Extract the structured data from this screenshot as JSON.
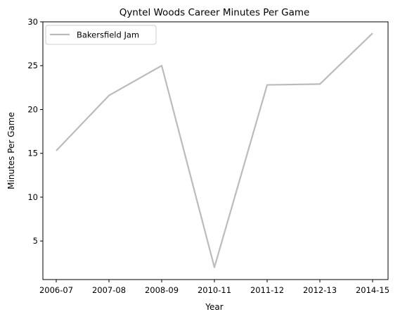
{
  "chart_data": {
    "type": "line",
    "title": "Qyntel Woods Career Minutes Per Game",
    "xlabel": "Year",
    "ylabel": "Minutes Per Game",
    "categories": [
      "2006-07",
      "2007-08",
      "2008-09",
      "2010-11",
      "2011-12",
      "2012-13",
      "2014-15"
    ],
    "series": [
      {
        "name": "Bakersfield Jam",
        "values": [
          15.3,
          21.6,
          25.0,
          2.0,
          22.8,
          22.9,
          28.7
        ],
        "color": "#bbbbbb"
      }
    ],
    "yticks": [
      "5",
      "10",
      "15",
      "20",
      "25",
      "30"
    ],
    "ylim": [
      0.6,
      30.0
    ],
    "grid": false,
    "legend": "top-left"
  }
}
